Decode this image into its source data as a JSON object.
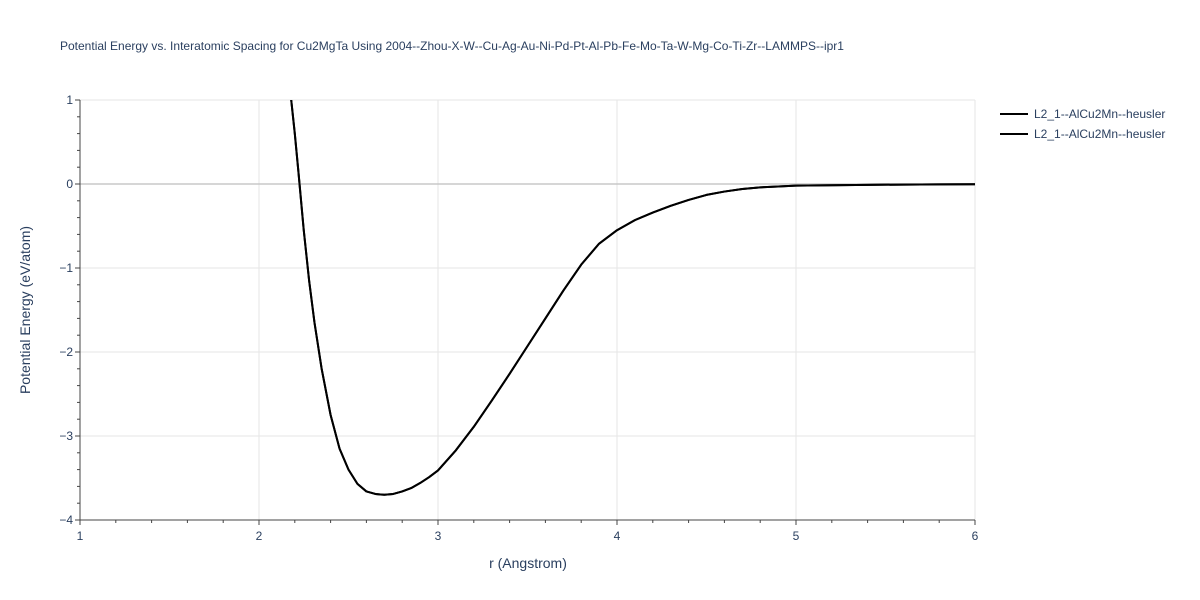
{
  "chart_data": {
    "type": "line",
    "title": "Potential Energy vs. Interatomic Spacing for Cu2MgTa Using 2004--Zhou-X-W--Cu-Ag-Au-Ni-Pd-Pt-Al-Pb-Fe-Mo-Ta-W-Mg-Co-Ti-Zr--LAMMPS--ipr1",
    "xlabel": "r (Angstrom)",
    "ylabel": "Potential Energy (eV/atom)",
    "xlim": [
      1,
      6
    ],
    "ylim": [
      -4,
      1
    ],
    "xticks": [
      1,
      2,
      3,
      4,
      5,
      6
    ],
    "xtick_labels": [
      "1",
      "2",
      "3",
      "4",
      "5",
      "6"
    ],
    "yticks": [
      -4,
      -3,
      -2,
      -1,
      0,
      1
    ],
    "ytick_labels": [
      "−4",
      "−3",
      "−2",
      "−1",
      "0",
      "1"
    ],
    "grid": true,
    "legend_position": "top-right",
    "colors": {
      "line": "#000000",
      "grid": "#e5e5e5",
      "zeroline": "#c8c8c8",
      "text": "#2a3f5f"
    },
    "series": [
      {
        "name": "L2_1--AlCu2Mn--heusler",
        "x": [
          2.18,
          2.2,
          2.22,
          2.25,
          2.28,
          2.31,
          2.35,
          2.4,
          2.45,
          2.5,
          2.55,
          2.6,
          2.65,
          2.7,
          2.75,
          2.8,
          2.85,
          2.9,
          2.95,
          3.0,
          3.1,
          3.2,
          3.3,
          3.4,
          3.5,
          3.6,
          3.7,
          3.8,
          3.9,
          4.0,
          4.1,
          4.2,
          4.3,
          4.4,
          4.5,
          4.6,
          4.7,
          4.8,
          4.9,
          5.0,
          5.2,
          5.4,
          5.6,
          5.8,
          6.0
        ],
        "y": [
          1.0,
          0.6,
          0.15,
          -0.55,
          -1.15,
          -1.65,
          -2.2,
          -2.75,
          -3.15,
          -3.4,
          -3.57,
          -3.66,
          -3.69,
          -3.7,
          -3.69,
          -3.66,
          -3.62,
          -3.56,
          -3.49,
          -3.41,
          -3.17,
          -2.89,
          -2.58,
          -2.26,
          -1.93,
          -1.6,
          -1.27,
          -0.96,
          -0.71,
          -0.55,
          -0.43,
          -0.34,
          -0.26,
          -0.19,
          -0.13,
          -0.09,
          -0.06,
          -0.04,
          -0.03,
          -0.02,
          -0.015,
          -0.01,
          -0.007,
          -0.005,
          -0.003
        ]
      },
      {
        "name": "L2_1--AlCu2Mn--heusler",
        "x": [
          2.18,
          2.2,
          2.22,
          2.25,
          2.28,
          2.31,
          2.35,
          2.4,
          2.45,
          2.5,
          2.55,
          2.6,
          2.65,
          2.7,
          2.75,
          2.8,
          2.85,
          2.9,
          2.95,
          3.0,
          3.1,
          3.2,
          3.3,
          3.4,
          3.5,
          3.6,
          3.7,
          3.8,
          3.9,
          4.0,
          4.1,
          4.2,
          4.3,
          4.4,
          4.5,
          4.6,
          4.7,
          4.8,
          4.9,
          5.0,
          5.2,
          5.4,
          5.6,
          5.8,
          6.0
        ],
        "y": [
          1.0,
          0.6,
          0.15,
          -0.55,
          -1.15,
          -1.65,
          -2.2,
          -2.75,
          -3.15,
          -3.4,
          -3.57,
          -3.66,
          -3.69,
          -3.7,
          -3.69,
          -3.66,
          -3.62,
          -3.56,
          -3.49,
          -3.41,
          -3.17,
          -2.89,
          -2.58,
          -2.26,
          -1.93,
          -1.6,
          -1.27,
          -0.96,
          -0.71,
          -0.55,
          -0.43,
          -0.34,
          -0.26,
          -0.19,
          -0.13,
          -0.09,
          -0.06,
          -0.04,
          -0.03,
          -0.02,
          -0.015,
          -0.01,
          -0.007,
          -0.005,
          -0.003
        ]
      }
    ]
  }
}
